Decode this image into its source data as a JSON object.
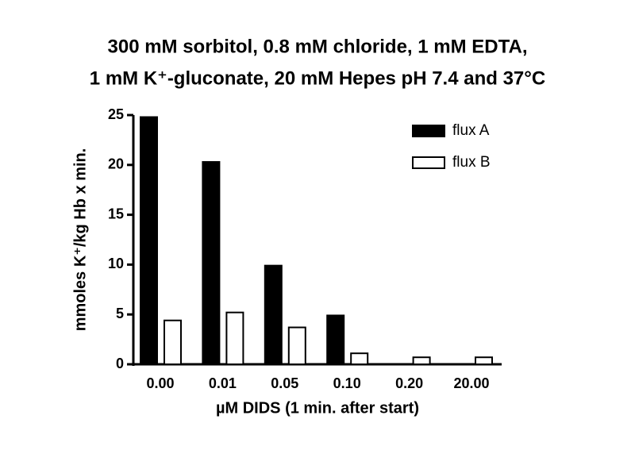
{
  "chart_data": {
    "type": "bar",
    "title": [
      "300 mM sorbitol, 0.8 mM chloride, 1 mM EDTA,",
      "1 mM K⁺-gluconate, 20 mM Hepes pH 7.4 and 37°C"
    ],
    "x_label": "µM DIDS (1 min. after start)",
    "y_label": "mmoles K⁺/kg Hb x min.",
    "categories": [
      "0.00",
      "0.01",
      "0.05",
      "0.10",
      "0.20",
      "20.00"
    ],
    "series": [
      {
        "name": "flux A",
        "color": "#000000",
        "values": [
          24.8,
          20.3,
          9.9,
          4.9,
          0,
          0
        ]
      },
      {
        "name": "flux B",
        "color": "#ffffff",
        "values": [
          4.4,
          5.2,
          3.7,
          1.1,
          0.7,
          0.7
        ]
      }
    ],
    "ylim": [
      0,
      25
    ],
    "yticks": [
      0,
      5,
      10,
      15,
      20,
      25
    ],
    "legend": "upper-right"
  }
}
